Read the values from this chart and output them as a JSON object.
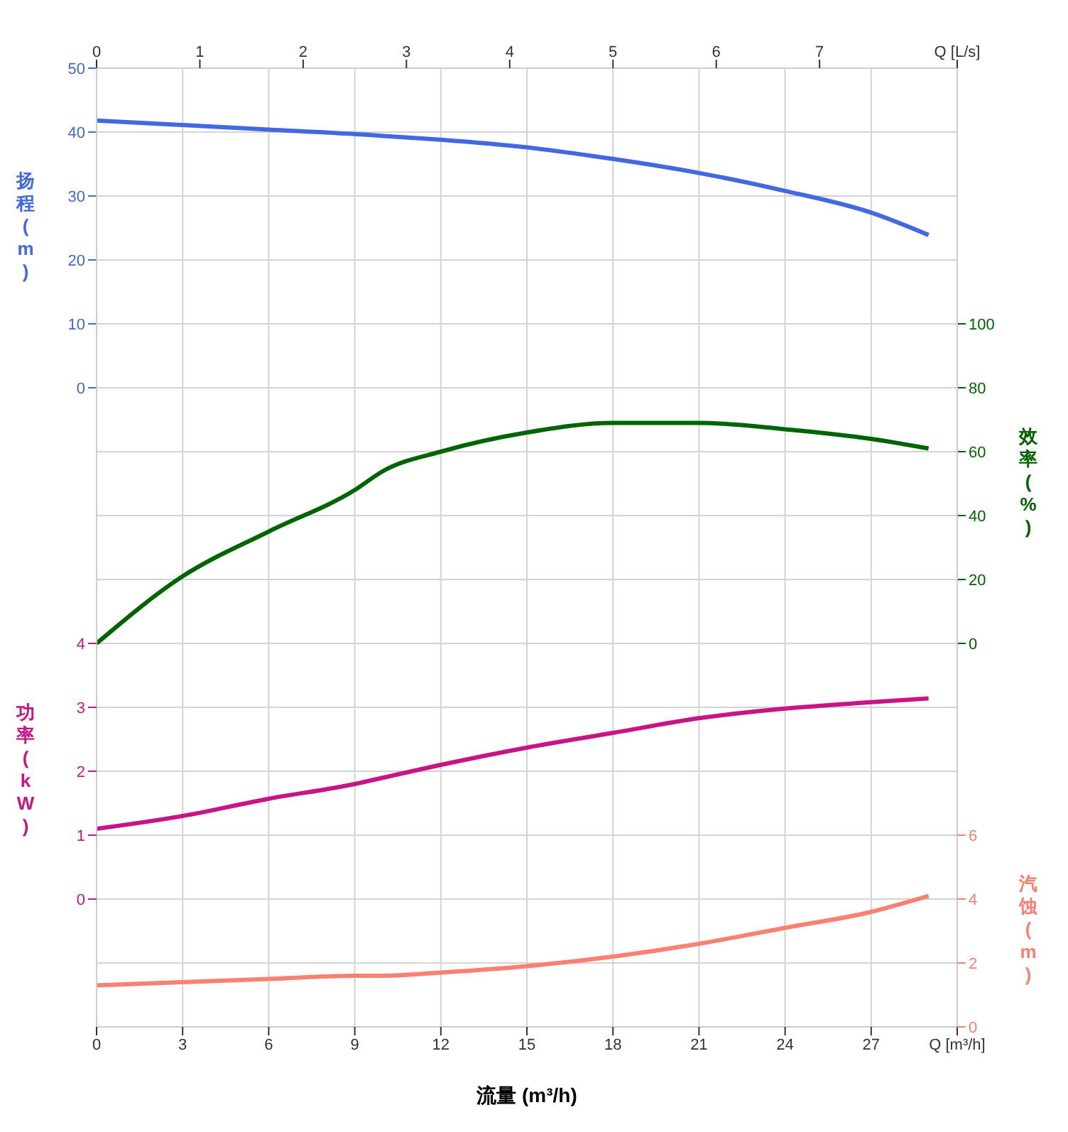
{
  "chart_data": [
    {
      "type": "line",
      "xlabel": "流量 (m³/h)",
      "ylabel": "扬程 (m)",
      "y2label": "效率 (%)",
      "x": [
        0,
        3,
        6,
        9,
        10,
        12,
        15,
        18,
        21,
        24,
        27,
        29
      ],
      "series": [
        {
          "color": "#4169e1",
          "values": [
            41.8,
            41.1,
            40.4,
            39.7,
            39.4,
            38.8,
            37.6,
            35.8,
            33.6,
            30.8,
            27.4,
            23.9
          ]
        },
        {
          "color": "#006400",
          "axis": "y2",
          "values": [
            0,
            21,
            35,
            48,
            54,
            60,
            66,
            69,
            69,
            67,
            64,
            61
          ]
        }
      ],
      "xlim": [
        0,
        30
      ],
      "xticks": [
        0,
        3,
        6,
        9,
        12,
        15,
        18,
        21,
        24,
        27,
        {
          "value": 30,
          "label": "Q [m³/h]"
        }
      ],
      "x2lim": [
        0,
        8.333
      ],
      "x2ticks": [
        0,
        1,
        2,
        3,
        4,
        5,
        6,
        7,
        {
          "value": 8.333,
          "label": "Q [L/s]"
        }
      ],
      "ylim": [
        -100,
        50
      ],
      "yticks": [
        0,
        10,
        20,
        30,
        40,
        50
      ],
      "y2lim": [
        -120,
        180
      ],
      "y2ticks": [
        0,
        20,
        40,
        60,
        80,
        100
      ],
      "grid": true,
      "marker": "none",
      "line_style": "solid"
    },
    {
      "type": "line",
      "ylabel": "功率 (kW)",
      "y2label": "汽蚀 (m)",
      "x": [
        0,
        3,
        6,
        9,
        10,
        12,
        15,
        18,
        21,
        24,
        27,
        29
      ],
      "series": [
        {
          "color": "#c71585",
          "values": [
            1.1,
            1.3,
            1.57,
            1.8,
            1.9,
            2.1,
            2.37,
            2.6,
            2.83,
            2.98,
            3.08,
            3.14
          ]
        },
        {
          "color": "#fa8072",
          "axis": "y2",
          "values": [
            1.3,
            1.4,
            1.5,
            1.6,
            1.6,
            1.7,
            1.9,
            2.2,
            2.6,
            3.1,
            3.6,
            4.1
          ]
        }
      ],
      "xlim": [
        0,
        30
      ],
      "ylim": [
        -2,
        13
      ],
      "yticks": [
        0,
        1,
        2,
        3,
        4
      ],
      "y2lim": [
        0,
        30
      ],
      "y2ticks": [
        0,
        2,
        4,
        6
      ],
      "tick_labels": "y",
      "marker": "none",
      "line_style": "solid"
    }
  ]
}
